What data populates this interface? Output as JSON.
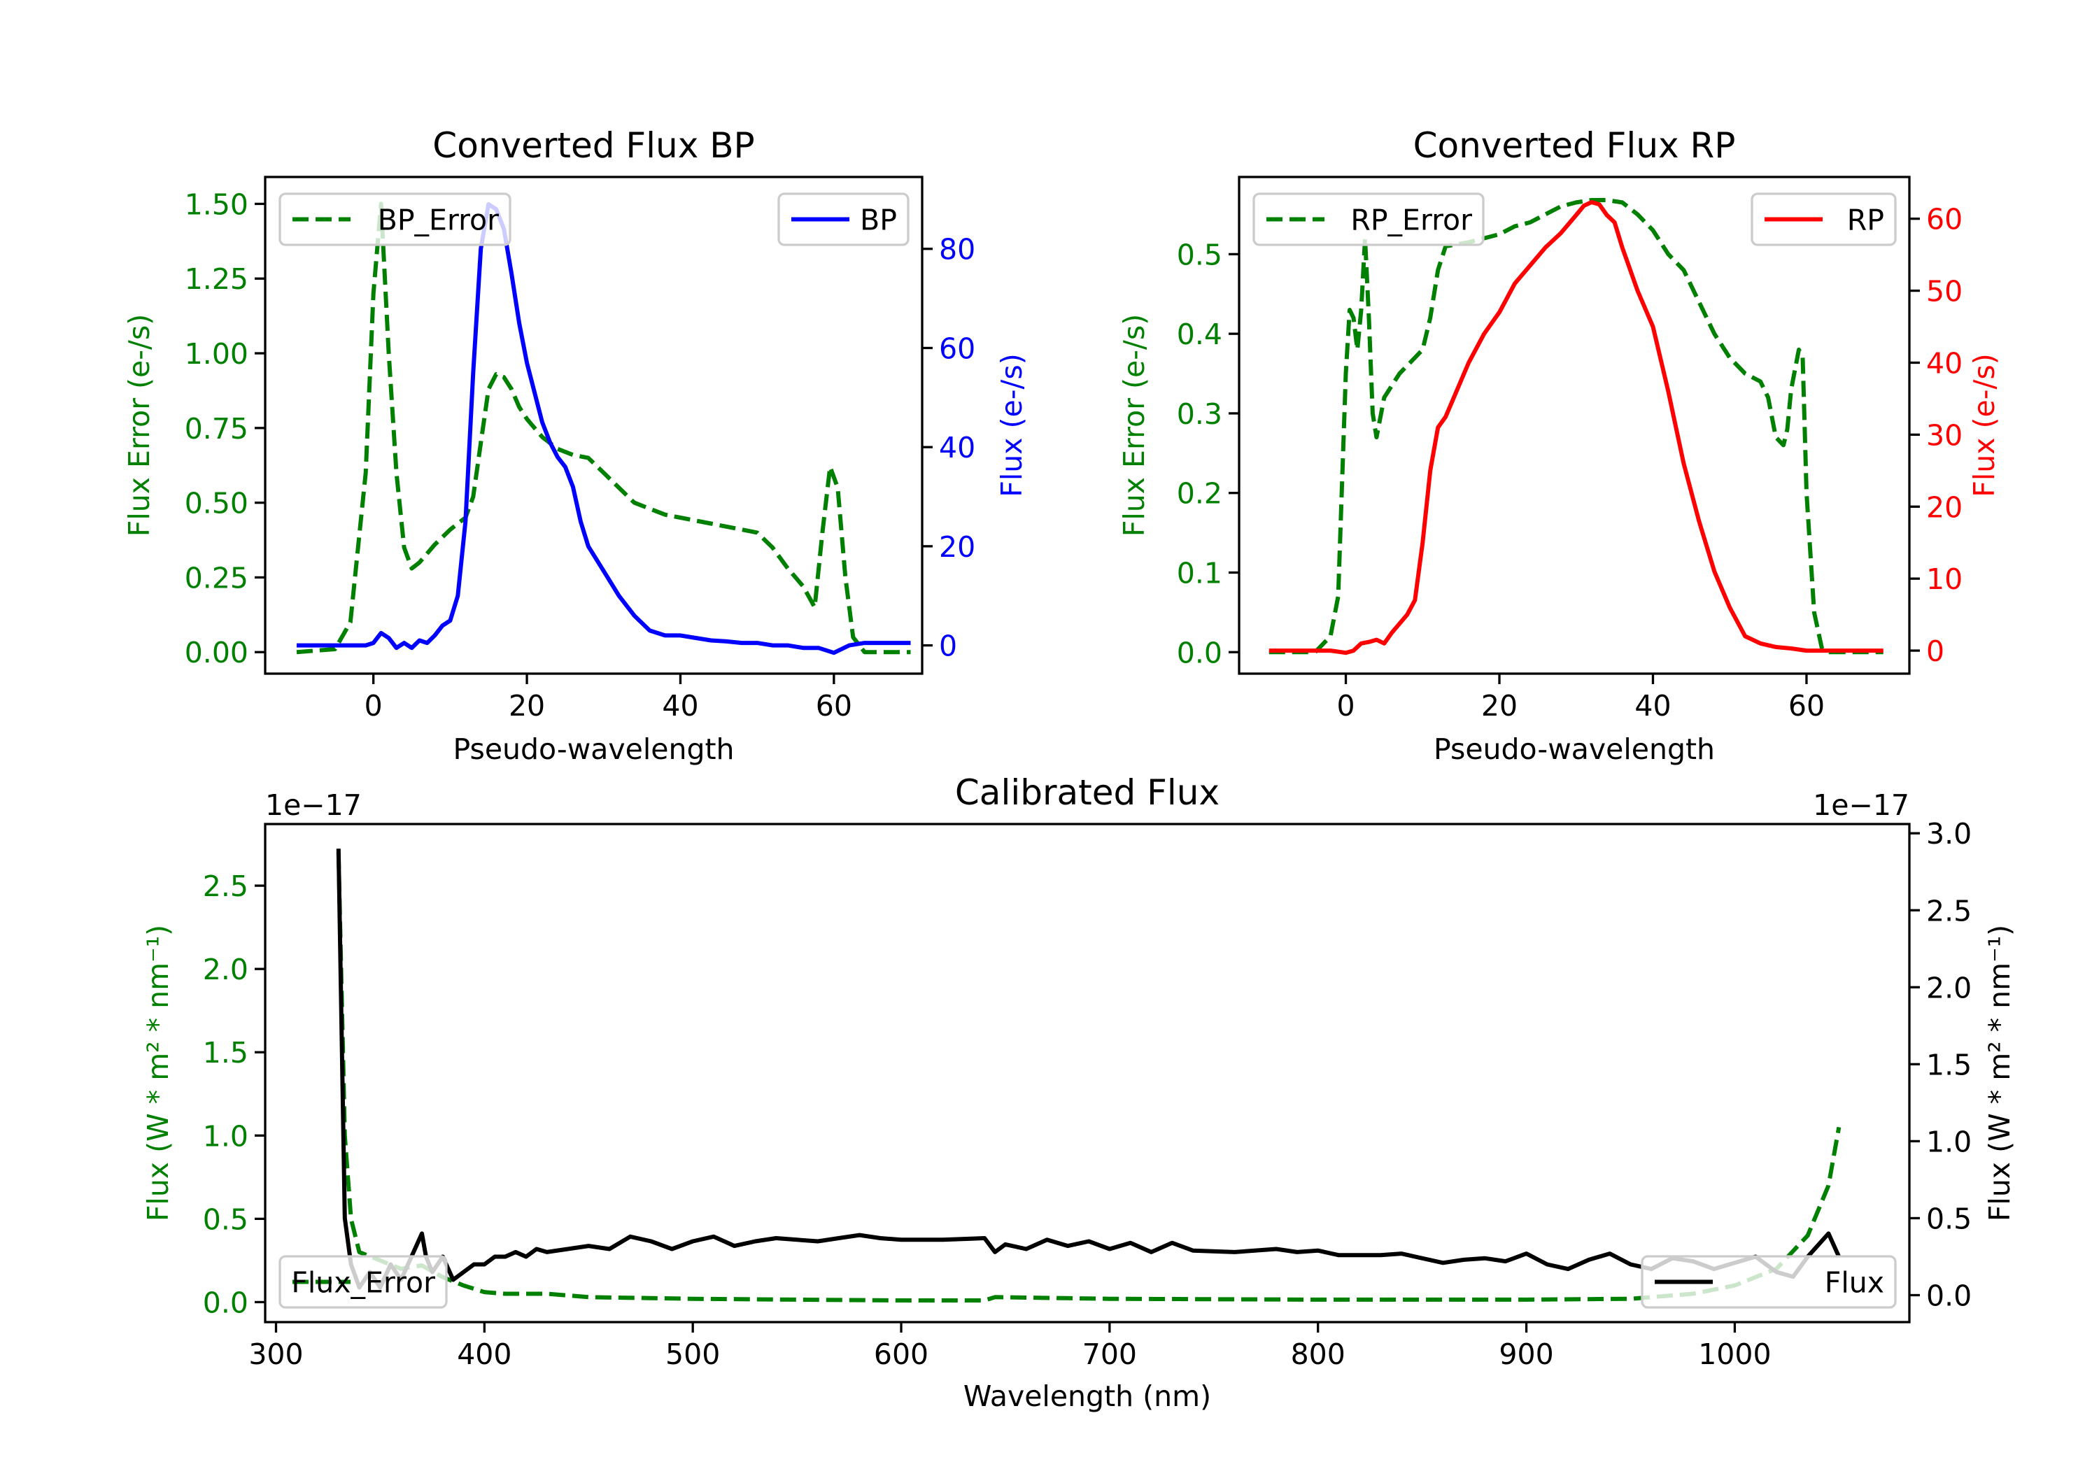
{
  "chart_data": [
    {
      "type": "line",
      "title": "Converted Flux BP",
      "xlabel": "Pseudo-wavelength",
      "ylabel": "Flux Error (e-/s)",
      "ylabel_right": "Flux (e-/s)",
      "xlim": [
        -14.1,
        71.5
      ],
      "ylim": [
        -0.072,
        1.59
      ],
      "ylim_right": [
        -5.7,
        94.5
      ],
      "xticks": [
        {
          "v": 0,
          "t": "0"
        },
        {
          "v": 20,
          "t": "20"
        },
        {
          "v": 40,
          "t": "40"
        },
        {
          "v": 60,
          "t": "60"
        }
      ],
      "yticks": [
        {
          "v": 0,
          "t": "0.00"
        },
        {
          "v": 0.25,
          "t": "0.25"
        },
        {
          "v": 0.5,
          "t": "0.50"
        },
        {
          "v": 0.75,
          "t": "0.75"
        },
        {
          "v": 1.0,
          "t": "1.00"
        },
        {
          "v": 1.25,
          "t": "1.25"
        },
        {
          "v": 1.5,
          "t": "1.50"
        }
      ],
      "yticks_right": [
        {
          "v": 0,
          "t": "0"
        },
        {
          "v": 20,
          "t": "20"
        },
        {
          "v": 40,
          "t": "40"
        },
        {
          "v": 60,
          "t": "60"
        },
        {
          "v": 80,
          "t": "80"
        }
      ],
      "left_color": "#008000",
      "right_color": "#0000ff",
      "legend_left": "upper left",
      "legend_right": "upper right",
      "series": [
        {
          "name": "BP_Error",
          "axis": "left",
          "color": "#008000",
          "style": "dashed",
          "x": [
            -10,
            -5,
            -3,
            -1,
            0,
            1,
            2,
            3,
            4,
            5,
            6,
            8,
            10,
            12,
            13,
            14,
            15,
            16,
            17,
            18,
            19,
            20,
            22,
            24,
            26,
            28,
            30,
            32,
            34,
            36,
            38,
            40,
            42,
            44,
            48,
            50,
            52,
            54,
            56,
            57.5,
            58.5,
            59.5,
            60.5,
            61.5,
            62.5,
            64,
            70
          ],
          "y": [
            0,
            0.01,
            0.1,
            0.6,
            1.2,
            1.5,
            1.0,
            0.6,
            0.35,
            0.28,
            0.3,
            0.36,
            0.41,
            0.45,
            0.52,
            0.7,
            0.88,
            0.93,
            0.92,
            0.88,
            0.82,
            0.78,
            0.72,
            0.68,
            0.66,
            0.65,
            0.6,
            0.55,
            0.5,
            0.48,
            0.46,
            0.45,
            0.44,
            0.43,
            0.41,
            0.4,
            0.35,
            0.28,
            0.22,
            0.15,
            0.4,
            0.62,
            0.55,
            0.25,
            0.05,
            0,
            0
          ]
        },
        {
          "name": "BP",
          "axis": "right",
          "color": "#0000ff",
          "style": "solid",
          "x": [
            -10,
            -1,
            0,
            1,
            2,
            3,
            4,
            5,
            6,
            7,
            8,
            9,
            10,
            11,
            12,
            13,
            14,
            15,
            16,
            17,
            18,
            19,
            20,
            22,
            23,
            24,
            25,
            26,
            27,
            28,
            30,
            32,
            34,
            36,
            38,
            40,
            42,
            44,
            46,
            48,
            50,
            52,
            54,
            56,
            58,
            60,
            62,
            64,
            70
          ],
          "y": [
            0,
            0,
            0.5,
            2.5,
            1.5,
            -0.5,
            0.5,
            -0.5,
            1,
            0.5,
            2,
            4,
            5,
            10,
            25,
            55,
            80,
            89,
            88,
            84,
            75,
            65,
            57,
            45,
            41,
            38,
            36,
            32,
            25,
            20,
            15,
            10,
            6,
            3,
            2,
            2,
            1.5,
            1,
            0.8,
            0.5,
            0.5,
            0,
            0,
            -0.5,
            -0.5,
            -1.5,
            0,
            0.5,
            0.5
          ]
        }
      ]
    },
    {
      "type": "line",
      "title": "Converted Flux RP",
      "xlabel": "Pseudo-wavelength",
      "ylabel": "Flux Error (e-/s)",
      "ylabel_right": "Flux (e-/s)",
      "xlim": [
        -13.9,
        73.4
      ],
      "ylim": [
        -0.027,
        0.597
      ],
      "ylim_right": [
        -3.2,
        65.8
      ],
      "xticks": [
        {
          "v": 0,
          "t": "0"
        },
        {
          "v": 20,
          "t": "20"
        },
        {
          "v": 40,
          "t": "40"
        },
        {
          "v": 60,
          "t": "60"
        }
      ],
      "yticks": [
        {
          "v": 0,
          "t": "0.0"
        },
        {
          "v": 0.1,
          "t": "0.1"
        },
        {
          "v": 0.2,
          "t": "0.2"
        },
        {
          "v": 0.3,
          "t": "0.3"
        },
        {
          "v": 0.4,
          "t": "0.4"
        },
        {
          "v": 0.5,
          "t": "0.5"
        }
      ],
      "yticks_right": [
        {
          "v": 0,
          "t": "0"
        },
        {
          "v": 10,
          "t": "10"
        },
        {
          "v": 20,
          "t": "20"
        },
        {
          "v": 30,
          "t": "30"
        },
        {
          "v": 40,
          "t": "40"
        },
        {
          "v": 50,
          "t": "50"
        },
        {
          "v": 60,
          "t": "60"
        }
      ],
      "left_color": "#008000",
      "right_color": "#ff0000",
      "legend_left": "upper left",
      "legend_right": "upper right",
      "series": [
        {
          "name": "RP_Error",
          "axis": "left",
          "color": "#008000",
          "style": "dashed",
          "x": [
            -10,
            -4,
            -2,
            -1,
            0,
            0.5,
            1,
            1.5,
            2,
            2.5,
            3,
            3.5,
            4,
            5,
            7,
            10,
            11,
            12,
            13,
            16,
            18,
            20,
            22,
            24,
            26,
            28,
            30,
            32,
            34,
            36,
            38,
            40,
            42,
            44,
            46,
            48,
            50,
            52,
            54,
            55,
            56,
            57,
            57.5,
            58,
            59,
            59.5,
            60,
            61,
            62,
            63,
            70
          ],
          "y": [
            0,
            0,
            0.02,
            0.07,
            0.35,
            0.43,
            0.42,
            0.38,
            0.43,
            0.52,
            0.42,
            0.3,
            0.27,
            0.32,
            0.35,
            0.38,
            0.42,
            0.48,
            0.51,
            0.515,
            0.52,
            0.525,
            0.535,
            0.54,
            0.55,
            0.56,
            0.565,
            0.568,
            0.568,
            0.565,
            0.55,
            0.53,
            0.5,
            0.48,
            0.44,
            0.4,
            0.37,
            0.35,
            0.34,
            0.32,
            0.27,
            0.26,
            0.28,
            0.33,
            0.38,
            0.37,
            0.2,
            0.05,
            0.005,
            0,
            0
          ]
        },
        {
          "name": "RP",
          "axis": "right",
          "color": "#ff0000",
          "style": "solid",
          "x": [
            -10,
            -2,
            0,
            1,
            2,
            3,
            4,
            5,
            6,
            8,
            9,
            10,
            11,
            12,
            13,
            14,
            16,
            18,
            20,
            21,
            22,
            24,
            26,
            28,
            30,
            31,
            32,
            33,
            34,
            35,
            36,
            37,
            38,
            40,
            42,
            43,
            44,
            46,
            48,
            50,
            52,
            54,
            56,
            58,
            60,
            62,
            70
          ],
          "y": [
            0,
            0,
            -0.3,
            0,
            1,
            1.2,
            1.5,
            1,
            2.5,
            5,
            7,
            15,
            25,
            31,
            32.5,
            35,
            40,
            44,
            47,
            49,
            51,
            53.5,
            56,
            58,
            60.5,
            61.8,
            62.3,
            62,
            60.5,
            59.5,
            56,
            53,
            50,
            45,
            36,
            31,
            26,
            18,
            11,
            6,
            2,
            1,
            0.5,
            0.3,
            0,
            0,
            0
          ]
        }
      ]
    },
    {
      "type": "line",
      "title": "Calibrated Flux",
      "xlabel": "Wavelength (nm)",
      "ylabel": "Flux (W * m² * nm⁻¹)",
      "ylabel_right": "Flux (W * m² * nm⁻¹)",
      "offset_left": "1e−17",
      "offset_right": "1e−17",
      "xlim": [
        294.8,
        1083.8
      ],
      "ylim": [
        -0.12,
        2.87
      ],
      "ylim_right": [
        -0.175,
        3.06
      ],
      "xticks": [
        {
          "v": 300,
          "t": "300"
        },
        {
          "v": 400,
          "t": "400"
        },
        {
          "v": 500,
          "t": "500"
        },
        {
          "v": 600,
          "t": "600"
        },
        {
          "v": 700,
          "t": "700"
        },
        {
          "v": 800,
          "t": "800"
        },
        {
          "v": 900,
          "t": "900"
        },
        {
          "v": 1000,
          "t": "1000"
        }
      ],
      "yticks": [
        {
          "v": 0,
          "t": "0.0"
        },
        {
          "v": 0.5,
          "t": "0.5"
        },
        {
          "v": 1.0,
          "t": "1.0"
        },
        {
          "v": 1.5,
          "t": "1.5"
        },
        {
          "v": 2.0,
          "t": "2.0"
        },
        {
          "v": 2.5,
          "t": "2.5"
        }
      ],
      "yticks_right": [
        {
          "v": 0,
          "t": "0.0"
        },
        {
          "v": 0.5,
          "t": "0.5"
        },
        {
          "v": 1.0,
          "t": "1.0"
        },
        {
          "v": 1.5,
          "t": "1.5"
        },
        {
          "v": 2.0,
          "t": "2.0"
        },
        {
          "v": 2.5,
          "t": "2.5"
        },
        {
          "v": 3.0,
          "t": "3.0"
        }
      ],
      "left_color": "#008000",
      "right_color": "#000000",
      "legend_left": "lower left",
      "legend_right": "lower right",
      "series": [
        {
          "name": "Flux_Error",
          "axis": "left",
          "color": "#008000",
          "style": "dashed",
          "x": [
            330,
            333,
            336,
            340,
            350,
            360,
            370,
            380,
            390,
            400,
            410,
            430,
            450,
            500,
            550,
            600,
            640,
            645,
            700,
            800,
            900,
            950,
            980,
            1000,
            1020,
            1035,
            1045,
            1050
          ],
          "y": [
            2.7,
            1.0,
            0.5,
            0.3,
            0.25,
            0.2,
            0.22,
            0.15,
            0.1,
            0.06,
            0.05,
            0.05,
            0.03,
            0.02,
            0.015,
            0.01,
            0.01,
            0.03,
            0.02,
            0.015,
            0.015,
            0.02,
            0.05,
            0.1,
            0.2,
            0.4,
            0.7,
            1.05
          ]
        },
        {
          "name": "Flux",
          "axis": "right",
          "color": "#000000",
          "style": "solid",
          "x": [
            330,
            333,
            336,
            340,
            345,
            350,
            355,
            360,
            365,
            370,
            372,
            375,
            380,
            385,
            390,
            395,
            400,
            405,
            410,
            415,
            420,
            425,
            430,
            440,
            450,
            460,
            470,
            480,
            490,
            500,
            510,
            520,
            530,
            540,
            550,
            560,
            570,
            580,
            590,
            600,
            620,
            640,
            645,
            650,
            660,
            670,
            680,
            690,
            700,
            710,
            720,
            730,
            740,
            760,
            780,
            790,
            800,
            810,
            830,
            840,
            860,
            870,
            880,
            890,
            900,
            910,
            920,
            930,
            940,
            950,
            960,
            970,
            980,
            990,
            1000,
            1010,
            1020,
            1028,
            1035,
            1045,
            1050
          ],
          "y": [
            2.9,
            0.5,
            0.2,
            0.05,
            0.15,
            0.05,
            0.2,
            0.1,
            0.25,
            0.4,
            0.25,
            0.15,
            0.25,
            0.1,
            0.15,
            0.2,
            0.2,
            0.25,
            0.25,
            0.28,
            0.25,
            0.3,
            0.28,
            0.3,
            0.32,
            0.3,
            0.38,
            0.35,
            0.3,
            0.35,
            0.38,
            0.32,
            0.35,
            0.37,
            0.36,
            0.35,
            0.37,
            0.39,
            0.37,
            0.36,
            0.36,
            0.37,
            0.28,
            0.33,
            0.3,
            0.36,
            0.32,
            0.35,
            0.3,
            0.34,
            0.28,
            0.34,
            0.29,
            0.28,
            0.3,
            0.28,
            0.29,
            0.26,
            0.26,
            0.27,
            0.21,
            0.23,
            0.24,
            0.22,
            0.27,
            0.2,
            0.17,
            0.23,
            0.27,
            0.2,
            0.17,
            0.24,
            0.22,
            0.17,
            0.21,
            0.25,
            0.15,
            0.12,
            0.25,
            0.4,
            0.25
          ]
        }
      ]
    }
  ]
}
